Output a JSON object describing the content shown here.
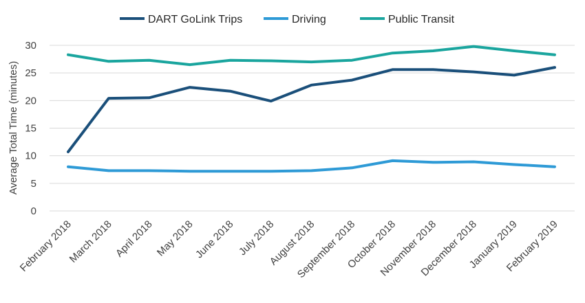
{
  "chart_data": {
    "type": "line",
    "title": "",
    "xlabel": "",
    "ylabel": "Average Total Time (minutes)",
    "ylim": [
      0,
      30
    ],
    "yticks": [
      0,
      5,
      10,
      15,
      20,
      25,
      30
    ],
    "grid": true,
    "legend_position": "top",
    "categories": [
      "February 2018",
      "March 2018",
      "April 2018",
      "May 2018",
      "June 2018",
      "July 2018",
      "August 2018",
      "September 2018",
      "October 2018",
      "November 2018",
      "December 2018",
      "January 2019",
      "February 2019"
    ],
    "series": [
      {
        "name": "DART GoLink Trips",
        "color": "#1a4f7a",
        "values": [
          10.7,
          20.4,
          20.5,
          22.4,
          21.7,
          19.9,
          22.8,
          23.7,
          25.6,
          25.6,
          25.2,
          24.6,
          26.0
        ]
      },
      {
        "name": "Driving",
        "color": "#2e9ad6",
        "values": [
          8.0,
          7.3,
          7.3,
          7.2,
          7.2,
          7.2,
          7.3,
          7.8,
          9.1,
          8.8,
          8.9,
          8.4,
          8.0
        ]
      },
      {
        "name": "Public Transit",
        "color": "#1aa59e",
        "values": [
          28.3,
          27.1,
          27.3,
          26.5,
          27.3,
          27.2,
          27.0,
          27.3,
          28.6,
          29.0,
          29.8,
          29.0,
          28.3
        ]
      }
    ]
  }
}
